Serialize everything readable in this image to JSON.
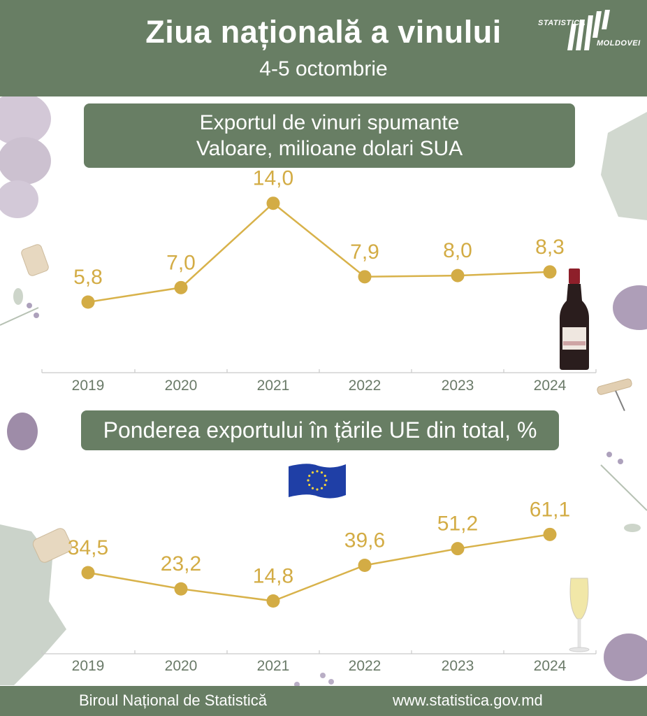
{
  "header": {
    "title": "Ziua națională a vinului",
    "subtitle": "4-5 octombrie",
    "logo_line1": "STATISTICA",
    "logo_line2": "MOLDOVEI"
  },
  "footer": {
    "left": "Biroul Național de Statistică",
    "right": "www.statistica.gov.md"
  },
  "colors": {
    "band": "#687e64",
    "line": "#d8b24a",
    "point": "#d3ac45",
    "label": "#d3ac45",
    "axis_text": "#6a7a68"
  },
  "chart_data": [
    {
      "type": "line",
      "title": "Exportul de vinuri spumante",
      "subtitle": "Valoare, milioane dolari SUA",
      "categories": [
        "2019",
        "2020",
        "2021",
        "2022",
        "2023",
        "2024"
      ],
      "values": [
        5.8,
        7.0,
        14.0,
        7.9,
        8.0,
        8.3
      ],
      "value_labels": [
        "5,8",
        "7,0",
        "14,0",
        "7,9",
        "8,0",
        "8,3"
      ],
      "xlabel": "",
      "ylabel": "",
      "grid": false
    },
    {
      "type": "line",
      "title": "Ponderea exportului în țările UE din total, %",
      "categories": [
        "2019",
        "2020",
        "2021",
        "2022",
        "2023",
        "2024"
      ],
      "values": [
        34.5,
        23.2,
        14.8,
        39.6,
        51.2,
        61.1
      ],
      "value_labels": [
        "34,5",
        "23,2",
        "14,8",
        "39,6",
        "51,2",
        "61,1"
      ],
      "xlabel": "",
      "ylabel": "",
      "grid": false
    }
  ]
}
